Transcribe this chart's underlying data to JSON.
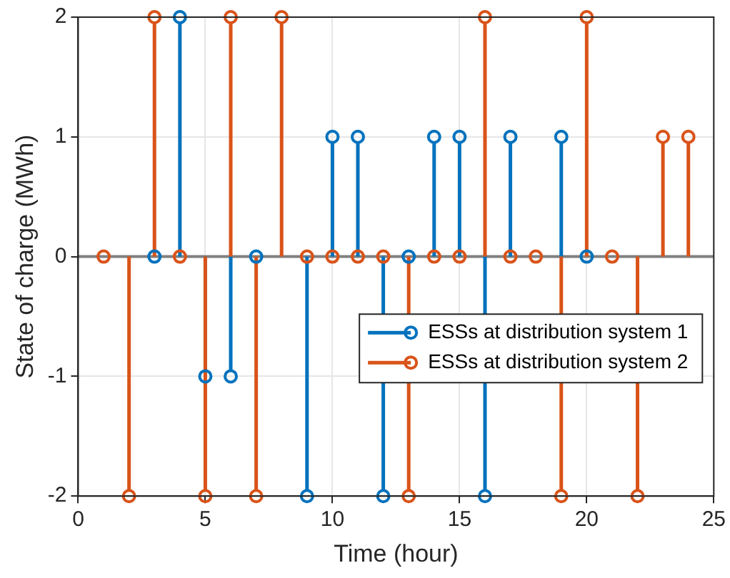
{
  "chart_data": {
    "type": "lollipop",
    "xlabel": "Time (hour)",
    "ylabel": "State of charge (MWh)",
    "x": [
      1,
      2,
      3,
      4,
      5,
      6,
      7,
      8,
      9,
      10,
      11,
      12,
      13,
      14,
      15,
      16,
      17,
      18,
      19,
      20,
      21,
      22,
      23,
      24
    ],
    "series": [
      {
        "name": "ESSs at distribution system 1",
        "color": "#0072bd",
        "values": [
          null,
          null,
          0,
          2,
          -1,
          -1,
          0,
          null,
          -2,
          1,
          1,
          -2,
          0,
          1,
          1,
          -2,
          1,
          null,
          1,
          0,
          null,
          null,
          null,
          null
        ]
      },
      {
        "name": "ESSs at distribution system 2",
        "color": "#d95319",
        "values": [
          0,
          -2,
          2,
          0,
          -2,
          2,
          -2,
          2,
          0,
          0,
          0,
          0,
          -2,
          0,
          0,
          2,
          0,
          0,
          -2,
          2,
          0,
          -2,
          1,
          1
        ]
      }
    ],
    "xlim": [
      0,
      25
    ],
    "xticks": [
      0,
      5,
      10,
      15,
      20,
      25
    ],
    "ylim": [
      -2,
      2
    ],
    "yticks": [
      -2,
      -1,
      0,
      1,
      2
    ],
    "ref_lines": [
      {
        "axis": "y",
        "value": 0,
        "color": "#808080"
      }
    ],
    "grid": true,
    "legend": "right",
    "marker": "circle",
    "line_style": "solid"
  }
}
